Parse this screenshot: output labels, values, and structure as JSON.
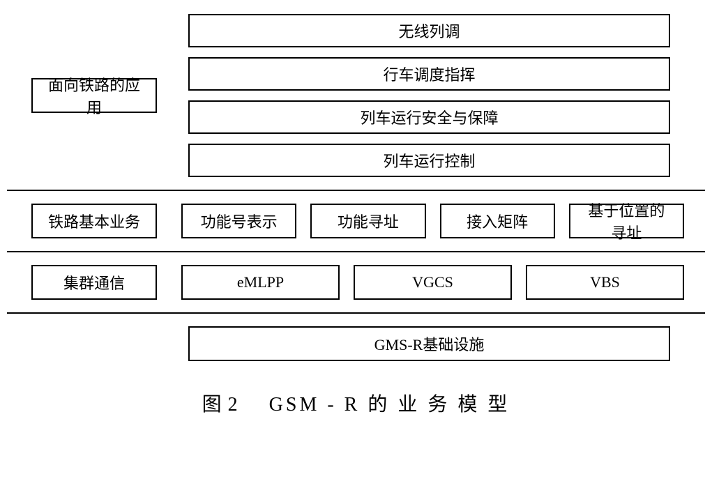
{
  "type": "layered-block-diagram",
  "background_color": "#ffffff",
  "border_color": "#000000",
  "border_width": 2,
  "text_color": "#000000",
  "font_size": 22,
  "divider_color": "#000000",
  "divider_width": 2,
  "layers": {
    "layer1": {
      "label": "面向铁路的应用",
      "items": [
        "无线列调",
        "行车调度指挥",
        "列车运行安全与保障",
        "列车运行控制"
      ]
    },
    "layer2": {
      "label": "铁路基本业务",
      "items": [
        "功能号表示",
        "功能寻址",
        "接入矩阵",
        "基于位置的寻址"
      ]
    },
    "layer3": {
      "label": "集群通信",
      "items": [
        "eMLPP",
        "VGCS",
        "VBS"
      ]
    },
    "layer4": {
      "label": "",
      "items": [
        "GMS-R基础设施"
      ]
    }
  },
  "caption": {
    "prefix": "图 2",
    "text": "GSM - R 的 业 务 模 型",
    "fontsize": 28
  }
}
